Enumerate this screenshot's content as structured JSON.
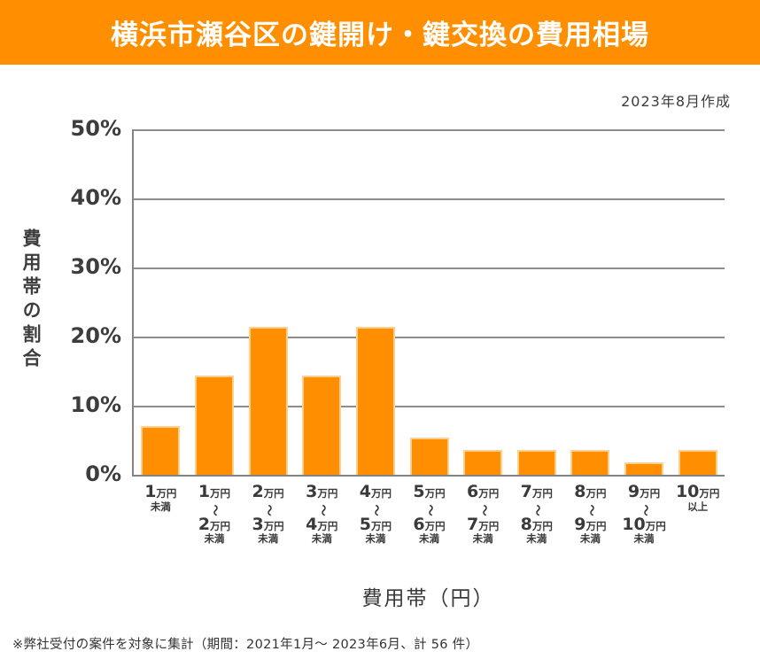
{
  "header": {
    "title": "横浜市瀬谷区の鍵開け・鍵交換の費用相場",
    "bg_color": "#FF8F00",
    "text_color": "#FFFFFF"
  },
  "meta": {
    "created_note": "2023年8月作成"
  },
  "chart_data": {
    "type": "bar",
    "title": "横浜市瀬谷区の鍵開け・鍵交換の費用相場",
    "categories": [
      [
        "1万円",
        "未満"
      ],
      [
        "1万円",
        "〜",
        "2万円",
        "未満"
      ],
      [
        "2万円",
        "〜",
        "3万円",
        "未満"
      ],
      [
        "3万円",
        "〜",
        "4万円",
        "未満"
      ],
      [
        "4万円",
        "〜",
        "5万円",
        "未満"
      ],
      [
        "5万円",
        "〜",
        "6万円",
        "未満"
      ],
      [
        "6万円",
        "〜",
        "7万円",
        "未満"
      ],
      [
        "7万円",
        "〜",
        "8万円",
        "未満"
      ],
      [
        "8万円",
        "〜",
        "9万円",
        "未満"
      ],
      [
        "9万円",
        "〜",
        "10万円",
        "未満"
      ],
      [
        "10万円",
        "以上"
      ]
    ],
    "values": [
      7.1,
      14.3,
      21.4,
      14.3,
      21.4,
      5.4,
      3.6,
      3.6,
      3.6,
      1.8,
      3.6
    ],
    "xlabel": "費用帯（円）",
    "ylabel": "費用帯の割合",
    "ylim": [
      0,
      50
    ],
    "ytick_step": 10,
    "ytick_labels": [
      "0%",
      "10%",
      "20%",
      "30%",
      "40%",
      "50%"
    ],
    "grid": true,
    "legend": "none",
    "bar_color": "#FF8F00",
    "bar_border_color": "#FFCF8F",
    "gridline_color": "#8D8D8D",
    "axis_color": "#848484"
  },
  "footnote": "※弊社受付の案件を対象に集計（期間：2021年1月～ 2023年6月、計 56 件）"
}
